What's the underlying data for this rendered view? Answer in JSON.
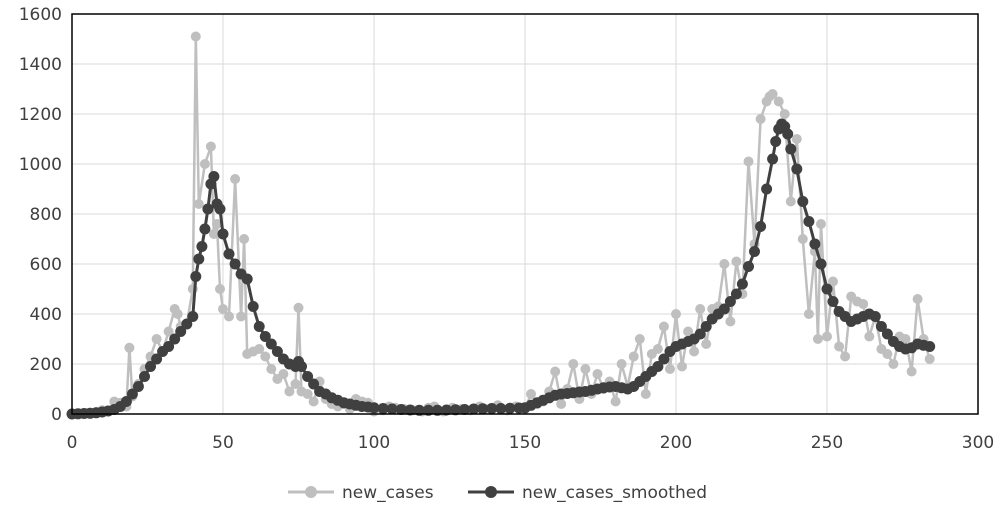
{
  "chart_data": {
    "type": "line",
    "xlim": [
      0,
      300
    ],
    "ylim": [
      0,
      1600
    ],
    "x_ticks": [
      "0",
      "50",
      "100",
      "150",
      "200",
      "250",
      "300"
    ],
    "y_ticks": [
      "0",
      "200",
      "400",
      "600",
      "800",
      "1000",
      "1200",
      "1400",
      "1600"
    ],
    "grid": true,
    "legend_position": "bottom",
    "series": [
      {
        "name": "new_cases",
        "color": "#bfbfbf",
        "marker": "circle",
        "points": [
          [
            0,
            0
          ],
          [
            2,
            2
          ],
          [
            4,
            3
          ],
          [
            6,
            5
          ],
          [
            8,
            8
          ],
          [
            10,
            15
          ],
          [
            12,
            12
          ],
          [
            14,
            50
          ],
          [
            16,
            45
          ],
          [
            18,
            30
          ],
          [
            19,
            265
          ],
          [
            20,
            70
          ],
          [
            22,
            120
          ],
          [
            24,
            180
          ],
          [
            26,
            230
          ],
          [
            28,
            300
          ],
          [
            30,
            250
          ],
          [
            32,
            330
          ],
          [
            34,
            420
          ],
          [
            35,
            400
          ],
          [
            36,
            350
          ],
          [
            38,
            360
          ],
          [
            40,
            500
          ],
          [
            41,
            1510
          ],
          [
            42,
            840
          ],
          [
            44,
            1000
          ],
          [
            46,
            1070
          ],
          [
            47,
            720
          ],
          [
            48,
            760
          ],
          [
            49,
            500
          ],
          [
            50,
            420
          ],
          [
            52,
            390
          ],
          [
            54,
            940
          ],
          [
            56,
            390
          ],
          [
            57,
            700
          ],
          [
            58,
            240
          ],
          [
            60,
            250
          ],
          [
            62,
            260
          ],
          [
            64,
            230
          ],
          [
            66,
            180
          ],
          [
            68,
            140
          ],
          [
            70,
            160
          ],
          [
            72,
            90
          ],
          [
            74,
            120
          ],
          [
            75,
            425
          ],
          [
            76,
            90
          ],
          [
            78,
            80
          ],
          [
            80,
            50
          ],
          [
            82,
            130
          ],
          [
            84,
            60
          ],
          [
            86,
            40
          ],
          [
            88,
            30
          ],
          [
            90,
            40
          ],
          [
            92,
            20
          ],
          [
            94,
            60
          ],
          [
            96,
            50
          ],
          [
            98,
            45
          ],
          [
            100,
            10
          ],
          [
            103,
            15
          ],
          [
            105,
            30
          ],
          [
            107,
            25
          ],
          [
            110,
            20
          ],
          [
            113,
            15
          ],
          [
            116,
            10
          ],
          [
            118,
            25
          ],
          [
            120,
            30
          ],
          [
            123,
            10
          ],
          [
            126,
            25
          ],
          [
            129,
            20
          ],
          [
            132,
            15
          ],
          [
            135,
            30
          ],
          [
            138,
            20
          ],
          [
            141,
            35
          ],
          [
            144,
            15
          ],
          [
            147,
            30
          ],
          [
            150,
            20
          ],
          [
            152,
            80
          ],
          [
            154,
            40
          ],
          [
            156,
            50
          ],
          [
            158,
            90
          ],
          [
            160,
            170
          ],
          [
            162,
            40
          ],
          [
            164,
            100
          ],
          [
            166,
            200
          ],
          [
            168,
            60
          ],
          [
            170,
            180
          ],
          [
            172,
            80
          ],
          [
            174,
            160
          ],
          [
            176,
            100
          ],
          [
            178,
            130
          ],
          [
            180,
            50
          ],
          [
            182,
            200
          ],
          [
            184,
            110
          ],
          [
            186,
            230
          ],
          [
            188,
            300
          ],
          [
            190,
            80
          ],
          [
            192,
            240
          ],
          [
            194,
            260
          ],
          [
            196,
            350
          ],
          [
            198,
            180
          ],
          [
            200,
            400
          ],
          [
            202,
            190
          ],
          [
            204,
            330
          ],
          [
            206,
            250
          ],
          [
            208,
            420
          ],
          [
            210,
            280
          ],
          [
            212,
            420
          ],
          [
            214,
            430
          ],
          [
            216,
            600
          ],
          [
            218,
            370
          ],
          [
            220,
            610
          ],
          [
            222,
            480
          ],
          [
            224,
            1010
          ],
          [
            226,
            680
          ],
          [
            228,
            1180
          ],
          [
            230,
            1250
          ],
          [
            231,
            1270
          ],
          [
            232,
            1280
          ],
          [
            234,
            1250
          ],
          [
            236,
            1200
          ],
          [
            238,
            850
          ],
          [
            240,
            1100
          ],
          [
            242,
            700
          ],
          [
            244,
            400
          ],
          [
            246,
            650
          ],
          [
            247,
            300
          ],
          [
            248,
            760
          ],
          [
            250,
            310
          ],
          [
            252,
            530
          ],
          [
            254,
            270
          ],
          [
            256,
            230
          ],
          [
            258,
            470
          ],
          [
            260,
            450
          ],
          [
            262,
            440
          ],
          [
            264,
            310
          ],
          [
            266,
            390
          ],
          [
            268,
            260
          ],
          [
            270,
            240
          ],
          [
            272,
            200
          ],
          [
            274,
            310
          ],
          [
            276,
            300
          ],
          [
            278,
            170
          ],
          [
            280,
            460
          ],
          [
            282,
            300
          ],
          [
            284,
            220
          ]
        ]
      },
      {
        "name": "new_cases_smoothed",
        "color": "#404040",
        "marker": "circle",
        "points": [
          [
            0,
            0
          ],
          [
            2,
            1
          ],
          [
            4,
            2
          ],
          [
            6,
            3
          ],
          [
            8,
            5
          ],
          [
            10,
            8
          ],
          [
            12,
            12
          ],
          [
            14,
            18
          ],
          [
            16,
            30
          ],
          [
            18,
            50
          ],
          [
            20,
            80
          ],
          [
            22,
            110
          ],
          [
            24,
            150
          ],
          [
            26,
            190
          ],
          [
            28,
            220
          ],
          [
            30,
            250
          ],
          [
            32,
            270
          ],
          [
            34,
            300
          ],
          [
            36,
            330
          ],
          [
            38,
            360
          ],
          [
            40,
            390
          ],
          [
            41,
            550
          ],
          [
            42,
            620
          ],
          [
            43,
            670
          ],
          [
            44,
            740
          ],
          [
            45,
            820
          ],
          [
            46,
            920
          ],
          [
            47,
            950
          ],
          [
            48,
            840
          ],
          [
            49,
            820
          ],
          [
            50,
            720
          ],
          [
            52,
            640
          ],
          [
            54,
            600
          ],
          [
            56,
            560
          ],
          [
            58,
            540
          ],
          [
            60,
            430
          ],
          [
            62,
            350
          ],
          [
            64,
            310
          ],
          [
            66,
            280
          ],
          [
            68,
            250
          ],
          [
            70,
            220
          ],
          [
            72,
            200
          ],
          [
            74,
            190
          ],
          [
            75,
            210
          ],
          [
            76,
            190
          ],
          [
            78,
            150
          ],
          [
            80,
            120
          ],
          [
            82,
            90
          ],
          [
            84,
            80
          ],
          [
            86,
            65
          ],
          [
            88,
            55
          ],
          [
            90,
            45
          ],
          [
            92,
            40
          ],
          [
            94,
            35
          ],
          [
            96,
            30
          ],
          [
            98,
            28
          ],
          [
            100,
            25
          ],
          [
            103,
            22
          ],
          [
            106,
            20
          ],
          [
            109,
            18
          ],
          [
            112,
            16
          ],
          [
            115,
            15
          ],
          [
            118,
            15
          ],
          [
            121,
            15
          ],
          [
            124,
            16
          ],
          [
            127,
            17
          ],
          [
            130,
            18
          ],
          [
            133,
            20
          ],
          [
            136,
            21
          ],
          [
            139,
            22
          ],
          [
            142,
            22
          ],
          [
            145,
            23
          ],
          [
            148,
            24
          ],
          [
            150,
            25
          ],
          [
            152,
            35
          ],
          [
            154,
            45
          ],
          [
            156,
            55
          ],
          [
            158,
            65
          ],
          [
            160,
            75
          ],
          [
            162,
            80
          ],
          [
            164,
            82
          ],
          [
            166,
            85
          ],
          [
            168,
            88
          ],
          [
            170,
            90
          ],
          [
            172,
            95
          ],
          [
            174,
            100
          ],
          [
            176,
            105
          ],
          [
            178,
            108
          ],
          [
            180,
            110
          ],
          [
            182,
            105
          ],
          [
            184,
            100
          ],
          [
            186,
            110
          ],
          [
            188,
            130
          ],
          [
            190,
            150
          ],
          [
            192,
            170
          ],
          [
            194,
            190
          ],
          [
            196,
            220
          ],
          [
            198,
            250
          ],
          [
            200,
            270
          ],
          [
            202,
            280
          ],
          [
            204,
            290
          ],
          [
            206,
            300
          ],
          [
            208,
            320
          ],
          [
            210,
            350
          ],
          [
            212,
            380
          ],
          [
            214,
            400
          ],
          [
            216,
            420
          ],
          [
            218,
            450
          ],
          [
            220,
            480
          ],
          [
            222,
            520
          ],
          [
            224,
            590
          ],
          [
            226,
            650
          ],
          [
            228,
            750
          ],
          [
            230,
            900
          ],
          [
            232,
            1020
          ],
          [
            233,
            1090
          ],
          [
            234,
            1140
          ],
          [
            235,
            1160
          ],
          [
            236,
            1150
          ],
          [
            237,
            1120
          ],
          [
            238,
            1060
          ],
          [
            240,
            980
          ],
          [
            242,
            850
          ],
          [
            244,
            770
          ],
          [
            246,
            680
          ],
          [
            248,
            600
          ],
          [
            250,
            500
          ],
          [
            252,
            450
          ],
          [
            254,
            410
          ],
          [
            256,
            390
          ],
          [
            258,
            370
          ],
          [
            260,
            380
          ],
          [
            262,
            390
          ],
          [
            264,
            400
          ],
          [
            266,
            390
          ],
          [
            268,
            350
          ],
          [
            270,
            320
          ],
          [
            272,
            290
          ],
          [
            274,
            270
          ],
          [
            276,
            260
          ],
          [
            278,
            265
          ],
          [
            280,
            280
          ],
          [
            282,
            275
          ],
          [
            284,
            270
          ]
        ]
      }
    ]
  }
}
